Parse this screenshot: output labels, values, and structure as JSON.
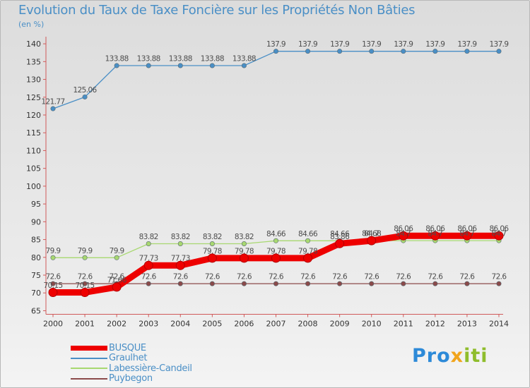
{
  "chart_data": {
    "type": "line",
    "title": "Evolution du Taux de Taxe Foncière sur les Propriétés Non Bâties",
    "unit_label": "(en %)",
    "xlabel": "",
    "ylabel": "",
    "categories": [
      "2000",
      "2001",
      "2002",
      "2003",
      "2004",
      "2005",
      "2006",
      "2007",
      "2008",
      "2009",
      "2010",
      "2011",
      "2012",
      "2013",
      "2014"
    ],
    "yticks": [
      65,
      70,
      75,
      80,
      85,
      90,
      95,
      100,
      105,
      110,
      115,
      120,
      125,
      130,
      135,
      140
    ],
    "ylim": [
      64,
      142
    ],
    "grid": false,
    "series": [
      {
        "name": "Graulhet",
        "color": "#4a8fc6",
        "values": [
          121.77,
          125.06,
          133.88,
          133.88,
          133.88,
          133.88,
          133.88,
          137.9,
          137.9,
          137.9,
          137.9,
          137.9,
          137.9,
          137.9,
          137.9
        ],
        "labels": [
          "121.77",
          "125.06",
          "133.88",
          "133.88",
          "133.88",
          "133.88",
          "133.88",
          "137.9",
          "137.9",
          "137.9",
          "137.9",
          "137.9",
          "137.9",
          "137.9",
          "137.9"
        ]
      },
      {
        "name": "Labessière-Candeil",
        "color": "#a8d870",
        "values": [
          79.9,
          79.9,
          79.9,
          83.82,
          83.82,
          83.82,
          83.82,
          84.66,
          84.66,
          84.66,
          84.7,
          84.7,
          84.7,
          84.7,
          84.7
        ],
        "labels": [
          "79.9",
          "79.9",
          "79.9",
          "83.82",
          "83.82",
          "83.82",
          "83.82",
          "84.66",
          "84.66",
          "84.66",
          "84.7",
          "84.7",
          "84.7",
          "84.7",
          "84.7"
        ]
      },
      {
        "name": "Puybegon",
        "color": "#8b4a4a",
        "values": [
          72.6,
          72.6,
          72.6,
          72.6,
          72.6,
          72.6,
          72.6,
          72.6,
          72.6,
          72.6,
          72.6,
          72.6,
          72.6,
          72.6,
          72.6
        ],
        "labels": [
          "72.6",
          "72.6",
          "72.6",
          "72.6",
          "72.6",
          "72.6",
          "72.6",
          "72.6",
          "72.6",
          "72.6",
          "72.6",
          "72.6",
          "72.6",
          "72.6",
          "72.6"
        ]
      },
      {
        "name": "BUSQUE",
        "color": "#ee0000",
        "values": [
          70.15,
          70.15,
          71.66,
          77.73,
          77.73,
          79.78,
          79.78,
          79.78,
          79.78,
          83.86,
          84.68,
          86.06,
          86.06,
          86.06,
          86.06
        ],
        "labels": [
          "70.15",
          "70.15",
          "71.66",
          "77.73",
          "77.73",
          "79.78",
          "79.78",
          "79.78",
          "79.78",
          "83.86",
          "84.68",
          "86.06",
          "86.06",
          "86.06",
          "86.06"
        ]
      }
    ],
    "legend": [
      "BUSQUE",
      "Graulhet",
      "Labessière-Candeil",
      "Puybegon"
    ],
    "legend_position": "bottom-left"
  },
  "brand": {
    "p1": "Pro",
    "p2": "x",
    "p3": "iti"
  }
}
